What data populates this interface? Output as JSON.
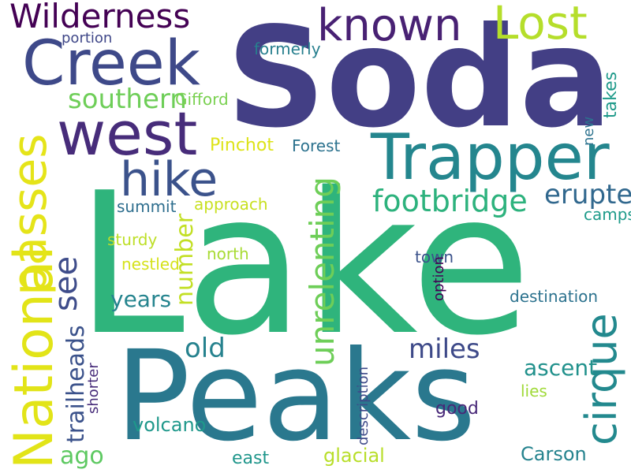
{
  "colors": {
    "background": "#ffffff",
    "palette": [
      "#440154",
      "#482878",
      "#3e4989",
      "#31688e",
      "#26828e",
      "#1f9e89",
      "#35b779",
      "#6ece58",
      "#b5de2b",
      "#fde725"
    ]
  },
  "words": [
    {
      "text": "Soda",
      "color": "#433f85"
    },
    {
      "text": "Lake",
      "color": "#2fb47c"
    },
    {
      "text": "Peaks",
      "color": "#2a788e"
    },
    {
      "text": "Trapper",
      "color": "#24868e"
    },
    {
      "text": "Creek",
      "color": "#3e4989"
    },
    {
      "text": "west",
      "color": "#472c7a"
    },
    {
      "text": "Lost",
      "color": "#b5de2b"
    },
    {
      "text": "known",
      "color": "#482173"
    },
    {
      "text": "Wilderness",
      "color": "#440154"
    },
    {
      "text": "hike",
      "color": "#3b528b"
    },
    {
      "text": "portion",
      "color": "#3f4788"
    },
    {
      "text": "formerly",
      "color": "#277f8e"
    },
    {
      "text": "southern",
      "color": "#6ece58"
    },
    {
      "text": "Gifford",
      "color": "#7ad151"
    },
    {
      "text": "Pinchot",
      "color": "#dde318"
    },
    {
      "text": "Forest",
      "color": "#2c728e"
    },
    {
      "text": "footbridge",
      "color": "#2db27d"
    },
    {
      "text": "erupted",
      "color": "#31688e"
    },
    {
      "text": "summit",
      "color": "#2e6e8e"
    },
    {
      "text": "approach",
      "color": "#c8e020"
    },
    {
      "text": "campsites",
      "color": "#1e9b8a"
    },
    {
      "text": "sturdy",
      "color": "#bddf26"
    },
    {
      "text": "nestled",
      "color": "#d5e21a"
    },
    {
      "text": "north",
      "color": "#a8db34"
    },
    {
      "text": "town",
      "color": "#3b528b"
    },
    {
      "text": "years",
      "color": "#25848e"
    },
    {
      "text": "destination",
      "color": "#2c728e"
    },
    {
      "text": "old",
      "color": "#26828e"
    },
    {
      "text": "miles",
      "color": "#3e4a89"
    },
    {
      "text": "ascent",
      "color": "#21918c"
    },
    {
      "text": "lies",
      "color": "#a0da39"
    },
    {
      "text": "volcano",
      "color": "#1f988b"
    },
    {
      "text": "good",
      "color": "#482878"
    },
    {
      "text": "ago",
      "color": "#5ec962"
    },
    {
      "text": "east",
      "color": "#1f968b"
    },
    {
      "text": "glacial",
      "color": "#b8de29"
    },
    {
      "text": "Carson",
      "color": "#25838e"
    },
    {
      "text": "National",
      "color": "#e2e418"
    },
    {
      "text": "passes",
      "color": "#e5e419"
    },
    {
      "text": "see",
      "color": "#3e4c8a"
    },
    {
      "text": "number",
      "color": "#c2df23"
    },
    {
      "text": "unrelenting",
      "color": "#6ece58"
    },
    {
      "text": "cirque",
      "color": "#23898e"
    },
    {
      "text": "takes",
      "color": "#1f9a8a"
    },
    {
      "text": "new",
      "color": "#2c728e"
    },
    {
      "text": "trailheads",
      "color": "#3b528b"
    },
    {
      "text": "shorter",
      "color": "#472c7a"
    },
    {
      "text": "description",
      "color": "#3e4a89"
    },
    {
      "text": "option",
      "color": "#440154"
    }
  ]
}
